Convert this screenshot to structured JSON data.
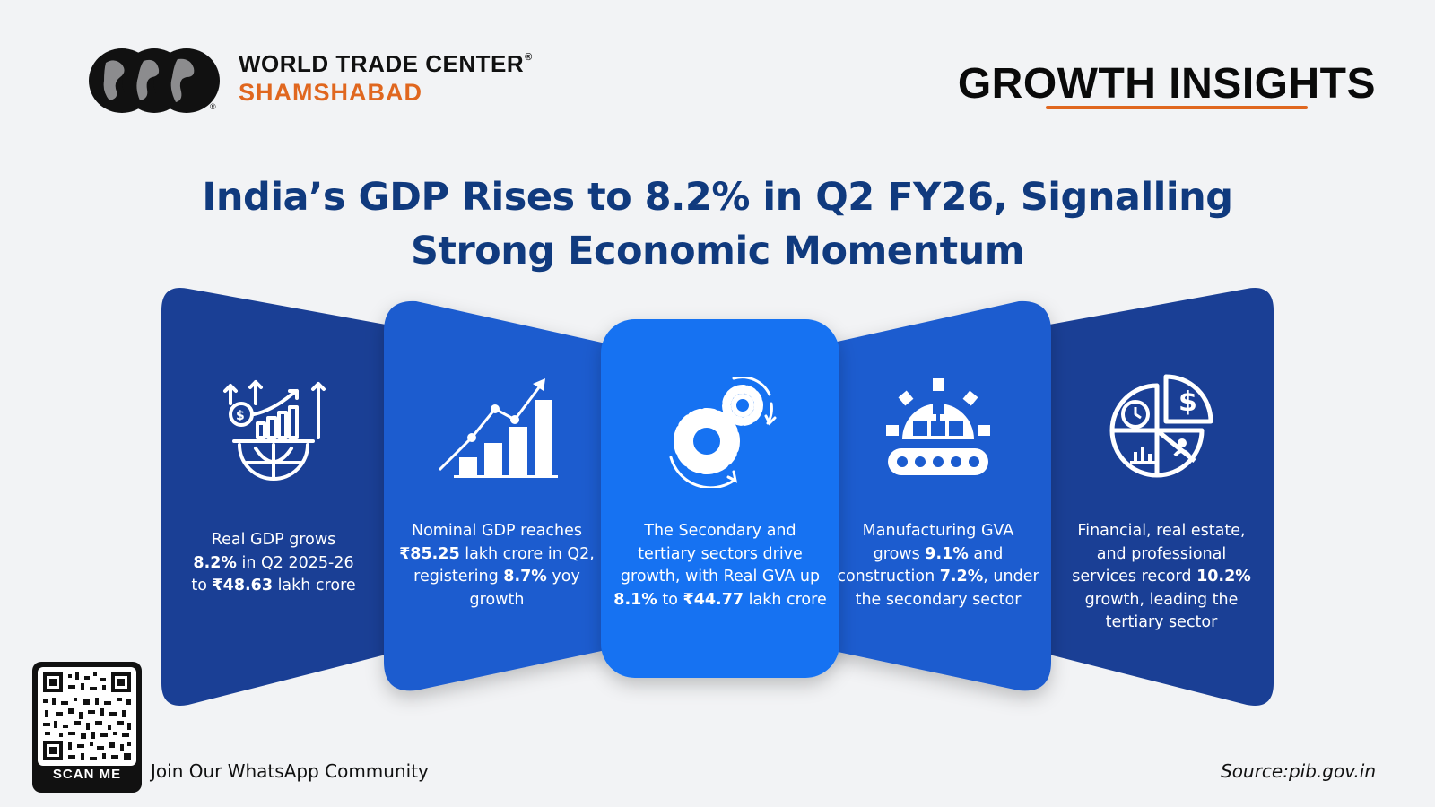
{
  "brand": {
    "line1": "WORLD TRADE CENTER",
    "registered": "®",
    "line2": "SHAMSHABAD"
  },
  "header": {
    "insights_title": "GROWTH INSIGHTS"
  },
  "headline": {
    "line1": "India’s GDP Rises to 8.2% in Q2 FY26, Signalling",
    "line2": "Strong Economic Momentum"
  },
  "colors": {
    "dark_blue": "#1a3f95",
    "mid_blue": "#1b5ccf",
    "bright_blue": "#1372f2",
    "accent_orange": "#e0671f",
    "headline_blue": "#103a7e"
  },
  "panels": [
    {
      "icon": "globe-growth-icon",
      "text": [
        "Real GDP grows",
        "8.2% in Q2 2025-26",
        "to ₹48.63 lakh crore"
      ],
      "bold": [
        [
          "8.2%"
        ],
        [
          "₹48.63"
        ]
      ]
    },
    {
      "icon": "bar-chart-growth-icon",
      "text": [
        "Nominal GDP reaches",
        "₹85.25 lakh crore in Q2,",
        "registering 8.7% yoy",
        "growth"
      ]
    },
    {
      "icon": "gears-icon",
      "text": [
        "The Secondary and",
        "tertiary sectors drive",
        "growth, with Real GVA up",
        "8.1% to ₹44.77 lakh crore"
      ]
    },
    {
      "icon": "factory-conveyor-icon",
      "text": [
        "Manufacturing GVA",
        "grows 9.1% and",
        "construction 7.2%, under",
        "the secondary sector"
      ]
    },
    {
      "icon": "pie-services-icon",
      "text": [
        "Financial, real estate,",
        "and professional",
        "services record 10.2%",
        "growth, leading the",
        "tertiary sector"
      ]
    }
  ],
  "footer": {
    "scan_label": "SCAN ME",
    "join_text": "Join Our WhatsApp Community",
    "source_text": "Source:pib.gov.in"
  }
}
